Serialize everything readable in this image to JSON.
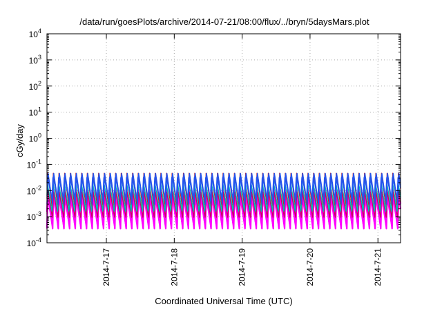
{
  "chart_data": {
    "type": "line",
    "title": "/data/run/goesPlots/archive/2014-07-21/08:00/flux/../bryn/5daysMars.plot",
    "xlabel": "Coordinated Universal Time (UTC)",
    "ylabel": "cGy/day",
    "yscale": "log",
    "ylim": [
      0.0001,
      10000
    ],
    "y_ticks": [
      {
        "value": 0.0001,
        "base": "10",
        "exp": "-4"
      },
      {
        "value": 0.001,
        "base": "10",
        "exp": "-3"
      },
      {
        "value": 0.01,
        "base": "10",
        "exp": "-2"
      },
      {
        "value": 0.1,
        "base": "10",
        "exp": "-1"
      },
      {
        "value": 1,
        "base": "10",
        "exp": "0"
      },
      {
        "value": 10,
        "base": "10",
        "exp": "1"
      },
      {
        "value": 100,
        "base": "10",
        "exp": "2"
      },
      {
        "value": 1000,
        "base": "10",
        "exp": "3"
      },
      {
        "value": 10000,
        "base": "10",
        "exp": "4"
      }
    ],
    "xlim": [
      "2014-07-16T03:00",
      "2014-07-21T08:00"
    ],
    "x_ticks": [
      {
        "value": "2014-07-17T00:00",
        "label": "2014-7-17"
      },
      {
        "value": "2014-07-18T00:00",
        "label": "2014-7-18"
      },
      {
        "value": "2014-07-19T00:00",
        "label": "2014-7-19"
      },
      {
        "value": "2014-07-20T00:00",
        "label": "2014-7-20"
      },
      {
        "value": "2014-07-21T00:00",
        "label": "2014-7-21"
      }
    ],
    "grid": true,
    "oscillation_period_hours": 2,
    "series": [
      {
        "color": "#ff00ff",
        "peak": 0.012,
        "trough": 0.00035,
        "phase_hours": 0.0
      },
      {
        "color": "#ff00ff",
        "peak": 0.007,
        "trough": 0.0005,
        "phase_hours": 0.15
      },
      {
        "color": "#cc0066",
        "peak": 0.009,
        "trough": 0.0009,
        "phase_hours": 0.05
      },
      {
        "color": "#cc2222",
        "peak": 0.05,
        "trough": 0.002,
        "phase_hours": 0.1
      },
      {
        "color": "#00bbbb",
        "peak": 0.02,
        "trough": 0.0015,
        "phase_hours": 0.2
      },
      {
        "color": "#2255ee",
        "peak": 0.05,
        "trough": 0.003,
        "phase_hours": 0.0
      },
      {
        "color": "#2255ee",
        "peak": 0.035,
        "trough": 0.005,
        "phase_hours": 0.25
      }
    ]
  }
}
